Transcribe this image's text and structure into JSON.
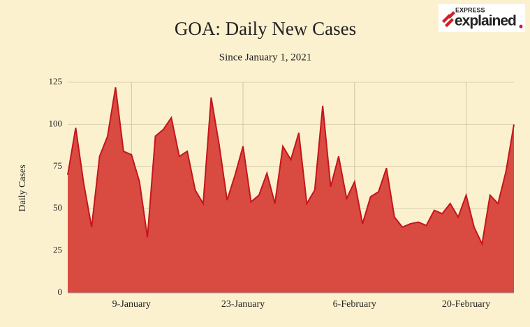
{
  "logo": {
    "top": "EXPRESS",
    "main": "explained"
  },
  "chart_data": {
    "type": "area",
    "title": "GOA: Daily New Cases",
    "subtitle": "Since January 1, 2021",
    "y_label": "Daily Cases",
    "categories": [
      null,
      null,
      null,
      null,
      null,
      null,
      null,
      null,
      "9-January",
      null,
      null,
      null,
      null,
      null,
      null,
      null,
      null,
      null,
      null,
      null,
      null,
      null,
      "23-January",
      null,
      null,
      null,
      null,
      null,
      null,
      null,
      null,
      null,
      null,
      null,
      null,
      null,
      "6-February",
      null,
      null,
      null,
      null,
      null,
      null,
      null,
      null,
      null,
      null,
      null,
      null,
      null,
      "20-February",
      null,
      null,
      null,
      null,
      null,
      null
    ],
    "values": [
      70,
      98,
      65,
      39,
      81,
      93,
      122,
      84,
      82,
      66,
      33,
      93,
      97,
      104,
      81,
      84,
      61,
      53,
      116,
      88,
      55,
      70,
      87,
      54,
      58,
      71,
      53,
      87,
      79,
      95,
      53,
      61,
      111,
      63,
      81,
      56,
      66,
      41,
      57,
      60,
      74,
      45,
      39,
      41,
      42,
      40,
      49,
      47,
      53,
      45,
      58,
      39,
      29,
      58,
      53,
      72,
      100
    ],
    "color": "#d94a40",
    "line_color": "#c4161c",
    "ylim": [
      0,
      125
    ],
    "yticks": [
      0,
      25,
      50,
      75,
      100,
      125
    ],
    "grid": true
  }
}
